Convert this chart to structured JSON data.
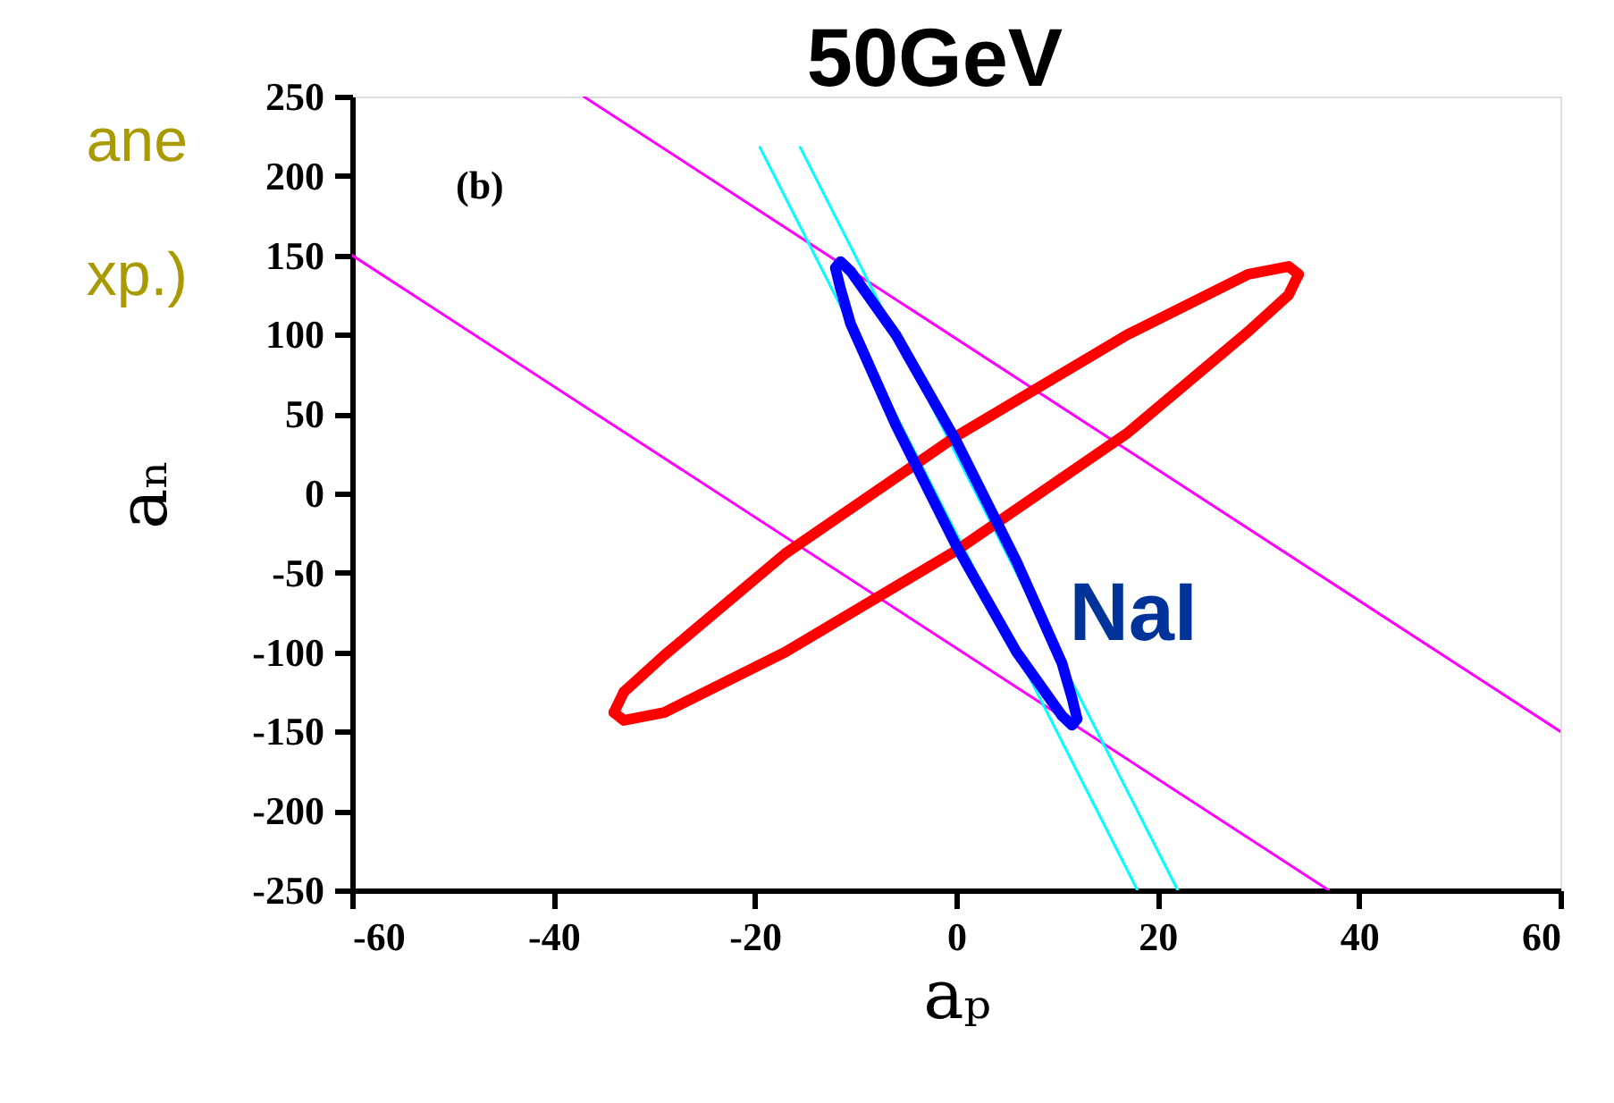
{
  "chart_data": {
    "type": "line",
    "title": "50GeV",
    "xlabel": "aₚ",
    "ylabel": "aₙ",
    "xlim": [
      -60,
      60
    ],
    "xticks": [
      -60,
      -40,
      -20,
      0,
      20,
      40,
      60
    ],
    "ylim": [
      -250,
      250
    ],
    "yticks": [
      -250,
      -200,
      -150,
      -100,
      -50,
      0,
      50,
      100,
      150,
      200,
      250
    ],
    "grid": false,
    "legend": false,
    "marker": "none",
    "line_style": "solid",
    "series": [
      {
        "color": "#ff00ff",
        "x": [
          -37,
          60
        ],
        "values": [
          250,
          -150
        ]
      },
      {
        "color": "#ff00ff",
        "x": [
          -60,
          37
        ],
        "values": [
          150,
          -250
        ]
      },
      {
        "color": "#00ffff",
        "x": [
          -19.5,
          18
        ],
        "values": [
          218,
          -250
        ]
      },
      {
        "color": "#00ffff",
        "x": [
          -15.5,
          22
        ],
        "values": [
          218,
          -250
        ]
      },
      {
        "color": "#ff0000",
        "x": [
          34,
          33,
          29,
          17,
          0,
          -17,
          -29,
          -33,
          -34
        ],
        "values": [
          138,
          143,
          138,
          100,
          36,
          -38,
          -102,
          -125,
          -138
        ]
      },
      {
        "color": "#ff0000",
        "x": [
          -34,
          -33,
          -29,
          -17,
          0,
          17,
          29,
          33,
          34
        ],
        "values": [
          -138,
          -143,
          -138,
          -100,
          -36,
          38,
          102,
          125,
          138
        ]
      },
      {
        "color": "#0000ff",
        "x": [
          12,
          11.5,
          10.5,
          6,
          0,
          -6,
          -10.5,
          -11.5,
          -12
        ],
        "values": [
          -142,
          -146,
          -140,
          -100,
          -33,
          43,
          107,
          129,
          142
        ]
      },
      {
        "color": "#0000ff",
        "x": [
          -12,
          -11.5,
          -10.5,
          -6,
          0,
          6,
          10.5,
          11.5,
          12
        ],
        "values": [
          142,
          146,
          140,
          100,
          33,
          -43,
          -107,
          -129,
          -142
        ]
      }
    ],
    "annotations": [
      "(b)",
      "NaI",
      "ane",
      "xp.)"
    ]
  }
}
